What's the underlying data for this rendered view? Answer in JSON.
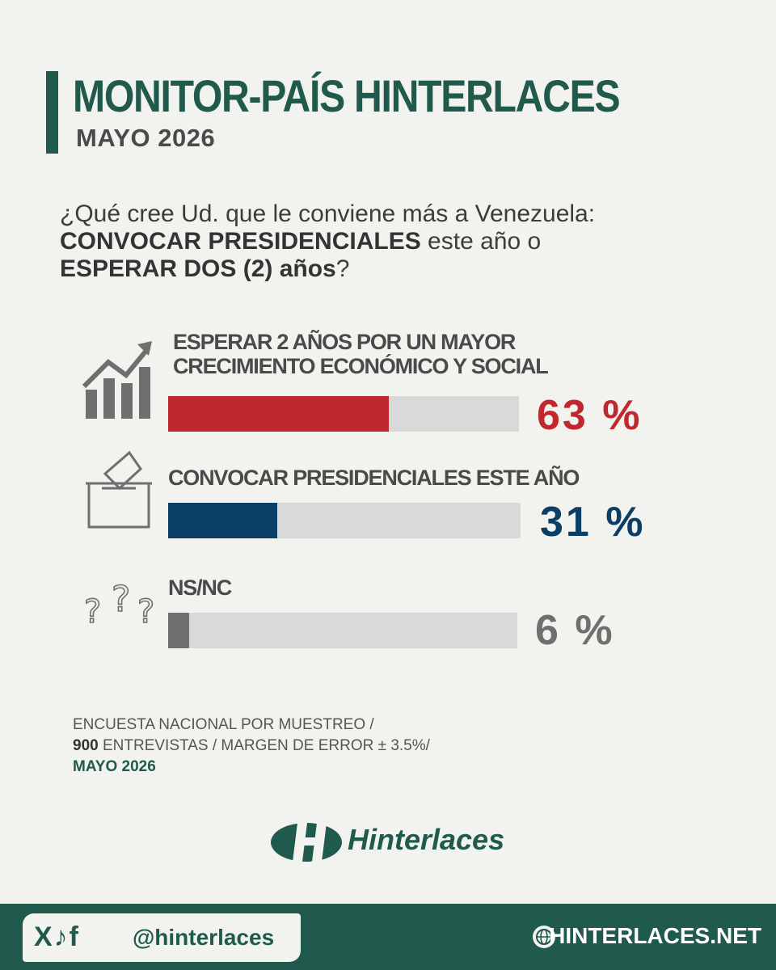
{
  "header": {
    "title": "MONITOR-PAÍS HINTERLACES",
    "subtitle": "MAYO 2026"
  },
  "question": {
    "part1": "¿Qué cree Ud. que le conviene más a Venezuela: ",
    "bold1": "CONVOCAR PRESIDENCIALES",
    "part2": " este año o ",
    "bold2": "ESPERAR DOS (2) años",
    "part3": "?"
  },
  "chart_data": {
    "type": "bar",
    "orientation": "horizontal",
    "categories": [
      "ESPERAR 2 AÑOS POR UN MAYOR CRECIMIENTO ECONÓMICO Y SOCIAL",
      "CONVOCAR PRESIDENCIALES ESTE AÑO",
      "NS/NC"
    ],
    "values": [
      63,
      31,
      6
    ],
    "value_labels": [
      "63 %",
      "31 %",
      "6 %"
    ],
    "colors": [
      "#c0282d",
      "#0c3f66",
      "#6f6f6f"
    ],
    "track_color": "#d9d9d9",
    "max": 100
  },
  "rows": [
    {
      "label_line1": "ESPERAR 2 AÑOS POR UN MAYOR",
      "label_line2": "CRECIMIENTO ECONÓMICO Y SOCIAL",
      "icon": "growth-chart-icon"
    },
    {
      "label_line1": "CONVOCAR PRESIDENCIALES ESTE AÑO",
      "icon": "ballot-box-icon"
    },
    {
      "label_line1": "NS/NC",
      "icon": "question-marks-icon"
    }
  ],
  "footnote": {
    "line1": "ENCUESTA NACIONAL POR MUESTREO /",
    "line2_bold": "900",
    "line2_rest": " ENTREVISTAS / MARGEN DE ERROR  ± 3.5%/",
    "line3": "MAYO 2026"
  },
  "logo": {
    "text": "Hinterlaces"
  },
  "footer": {
    "social_icons": "X♪f",
    "handle": "@hinterlaces",
    "website": "HINTERLACES.NET"
  },
  "colors": {
    "brand_green": "#1f5a4d",
    "background": "#f2f2ee",
    "red": "#c0282d",
    "blue": "#0c3f66",
    "gray": "#6f6f6f"
  }
}
